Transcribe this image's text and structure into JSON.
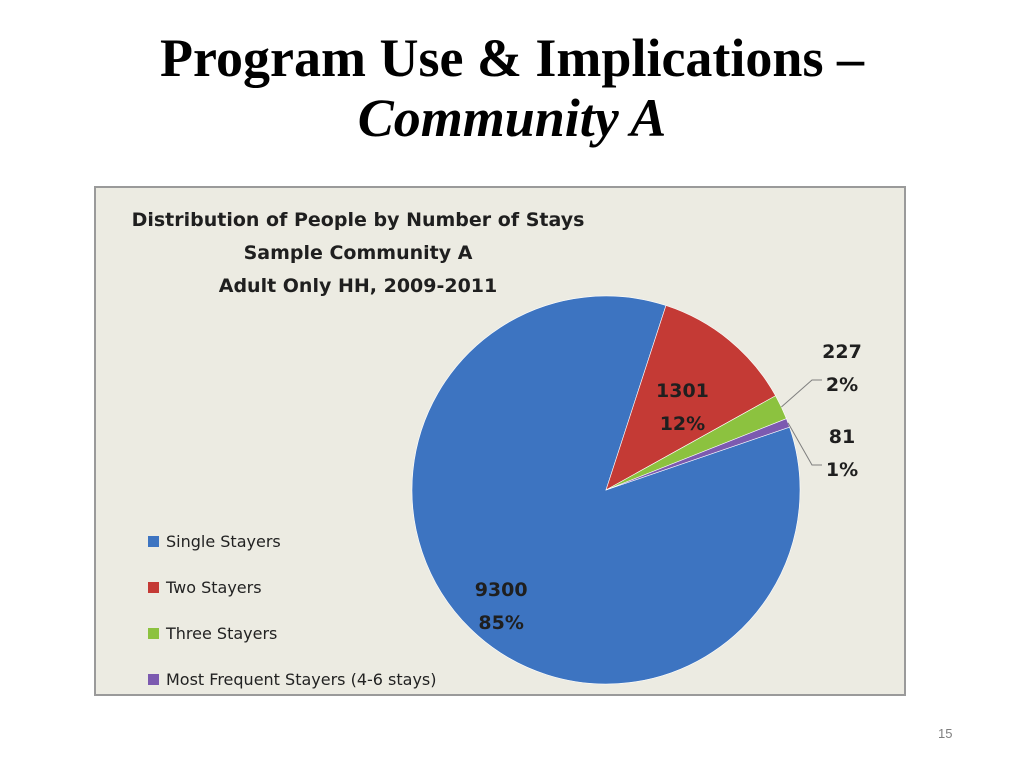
{
  "slide": {
    "title_line1": "Program Use & Implications –",
    "title_line2": "Community A",
    "page_number": "15"
  },
  "chart_data": {
    "type": "pie",
    "title": [
      "Distribution of People by Number of Stays",
      "Sample Community A",
      "Adult Only HH, 2009-2011"
    ],
    "slices": [
      {
        "name": "Single Stayers",
        "value": 9300,
        "percent": "85%",
        "color": "#3d74c1"
      },
      {
        "name": "Two Stayers",
        "value": 1301,
        "percent": "12%",
        "color": "#c43a35"
      },
      {
        "name": "Three Stayers",
        "value": 227,
        "percent": "2%",
        "color": "#8cc23f"
      },
      {
        "name": "Most Frequent Stayers (4-6 stays)",
        "value": 81,
        "percent": "1%",
        "color": "#7c5ab0"
      }
    ],
    "legend_position": "left-bottom",
    "data_labels": "value and percent"
  }
}
